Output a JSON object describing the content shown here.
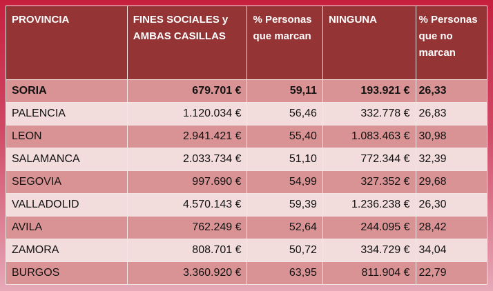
{
  "table": {
    "headers": [
      "PROVINCIA",
      "FINES SOCIALES  y AMBAS CASILLAS",
      "% Personas que marcan",
      "NINGUNA",
      "% Personas que no marcan"
    ],
    "rows": [
      [
        "SORIA",
        "679.701 €",
        "59,11",
        "193.921 €",
        "26,33"
      ],
      [
        "PALENCIA",
        "1.120.034 €",
        "56,46",
        "332.778 €",
        "26,83"
      ],
      [
        "LEON",
        "2.941.421 €",
        "55,40",
        "1.083.463 €",
        "30,98"
      ],
      [
        "SALAMANCA",
        "2.033.734 €",
        "51,10",
        "772.344 €",
        "32,39"
      ],
      [
        "SEGOVIA",
        "997.690 €",
        "54,99",
        "327.352 €",
        "29,68"
      ],
      [
        "VALLADOLID",
        "4.570.143 €",
        "59,39",
        "1.236.238 €",
        "26,30"
      ],
      [
        "AVILA",
        "762.249 €",
        "52,64",
        "244.095 €",
        "28,42"
      ],
      [
        "ZAMORA",
        "808.701 €",
        "50,72",
        "334.729 €",
        "34,04"
      ],
      [
        "BURGOS",
        "3.360.920 €",
        "63,95",
        "811.904 €",
        "22,79"
      ]
    ]
  },
  "colors": {
    "header": "#943434",
    "row_dark": "#d99394",
    "row_light": "#f2dcdc",
    "background": "#c61f3e"
  }
}
